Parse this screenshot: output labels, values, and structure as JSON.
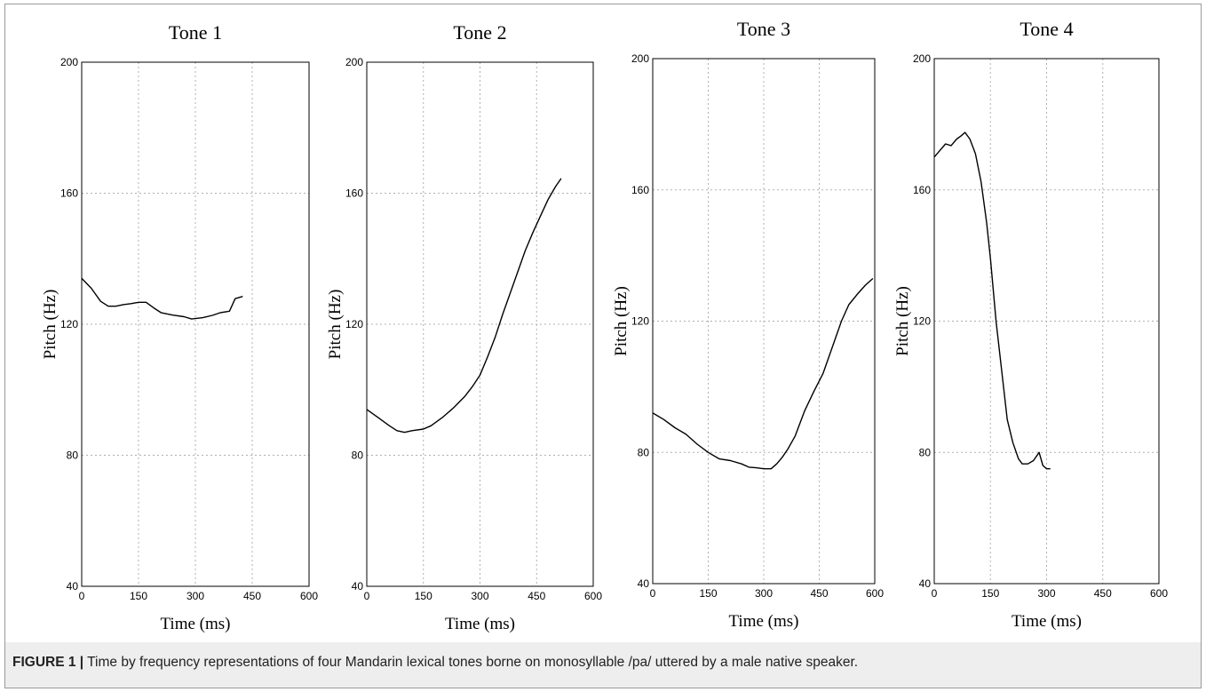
{
  "caption": {
    "label": "FIGURE 1 |",
    "text": " Time by frequency representations of four Mandarin lexical tones borne on monosyllable /pa/ uttered by a male native speaker."
  },
  "colors": {
    "line": "#000000",
    "grid": "#b0b0b0",
    "axis": "#000000",
    "caption_bg": "#eeeeee"
  },
  "chart_data": [
    {
      "type": "line",
      "title": "Tone 1",
      "xlabel": "Time (ms)",
      "ylabel": "Pitch (Hz)",
      "xlim": [
        0,
        600
      ],
      "ylim": [
        40,
        200
      ],
      "xticks": [
        0,
        150,
        300,
        450,
        600
      ],
      "yticks": [
        40,
        80,
        120,
        160,
        200
      ],
      "grid": true,
      "series": [
        {
          "x": [
            0,
            25,
            50,
            70,
            90,
            110,
            130,
            150,
            170,
            190,
            210,
            240,
            270,
            290,
            320,
            345,
            365,
            390,
            405,
            425
          ],
          "y": [
            134,
            131,
            127,
            125.5,
            125.5,
            126,
            126.3,
            126.7,
            126.7,
            125,
            123.5,
            122.8,
            122.3,
            121.6,
            122,
            122.7,
            123.5,
            124,
            127.8,
            128.5
          ]
        }
      ]
    },
    {
      "type": "line",
      "title": "Tone 2",
      "xlabel": "Time (ms)",
      "ylabel": "Pitch (Hz)",
      "xlim": [
        0,
        600
      ],
      "ylim": [
        40,
        200
      ],
      "xticks": [
        0,
        150,
        300,
        450,
        600
      ],
      "yticks": [
        40,
        80,
        120,
        160,
        200
      ],
      "grid": true,
      "series": [
        {
          "x": [
            0,
            30,
            60,
            80,
            100,
            120,
            150,
            170,
            200,
            230,
            260,
            280,
            300,
            320,
            340,
            360,
            380,
            400,
            420,
            440,
            460,
            480,
            500,
            515
          ],
          "y": [
            94,
            91.5,
            89,
            87.5,
            87,
            87.5,
            88,
            89,
            91.5,
            94.5,
            98,
            101,
            104.5,
            110,
            116,
            123,
            129.5,
            136,
            142.5,
            148,
            153,
            158,
            162,
            164.5
          ]
        }
      ]
    },
    {
      "type": "line",
      "title": "Tone 3",
      "xlabel": "Time (ms)",
      "ylabel": "Pitch (Hz)",
      "xlim": [
        0,
        600
      ],
      "ylim": [
        40,
        200
      ],
      "xticks": [
        0,
        150,
        300,
        450,
        600
      ],
      "yticks": [
        40,
        80,
        120,
        160,
        200
      ],
      "grid": true,
      "series": [
        {
          "x": [
            0,
            30,
            60,
            90,
            120,
            150,
            180,
            210,
            240,
            260,
            280,
            300,
            320,
            335,
            350,
            365,
            385,
            410,
            435,
            460,
            485,
            510,
            530,
            555,
            575,
            595
          ],
          "y": [
            92,
            90,
            87.5,
            85.5,
            82.5,
            80,
            78,
            77.5,
            76.5,
            75.5,
            75.3,
            75,
            75,
            76.5,
            78.5,
            81,
            85,
            92.5,
            98.5,
            104,
            112,
            120,
            125,
            128.5,
            131,
            133
          ]
        }
      ]
    },
    {
      "type": "line",
      "title": "Tone 4",
      "xlabel": "Time (ms)",
      "ylabel": "Pitch (Hz)",
      "xlim": [
        0,
        600
      ],
      "ylim": [
        40,
        200
      ],
      "xticks": [
        0,
        150,
        300,
        450,
        600
      ],
      "yticks": [
        40,
        80,
        120,
        160,
        200
      ],
      "grid": true,
      "series": [
        {
          "x": [
            0,
            15,
            30,
            45,
            60,
            72,
            82,
            95,
            110,
            125,
            140,
            150,
            165,
            180,
            195,
            210,
            225,
            235,
            250,
            265,
            280,
            290,
            300,
            310
          ],
          "y": [
            170,
            172,
            174,
            173.5,
            175.5,
            176.5,
            177.5,
            175.5,
            171,
            162.5,
            150,
            139,
            120,
            105,
            90,
            83,
            78,
            76.5,
            76.5,
            77.5,
            80,
            76,
            75,
            75
          ]
        }
      ]
    }
  ]
}
